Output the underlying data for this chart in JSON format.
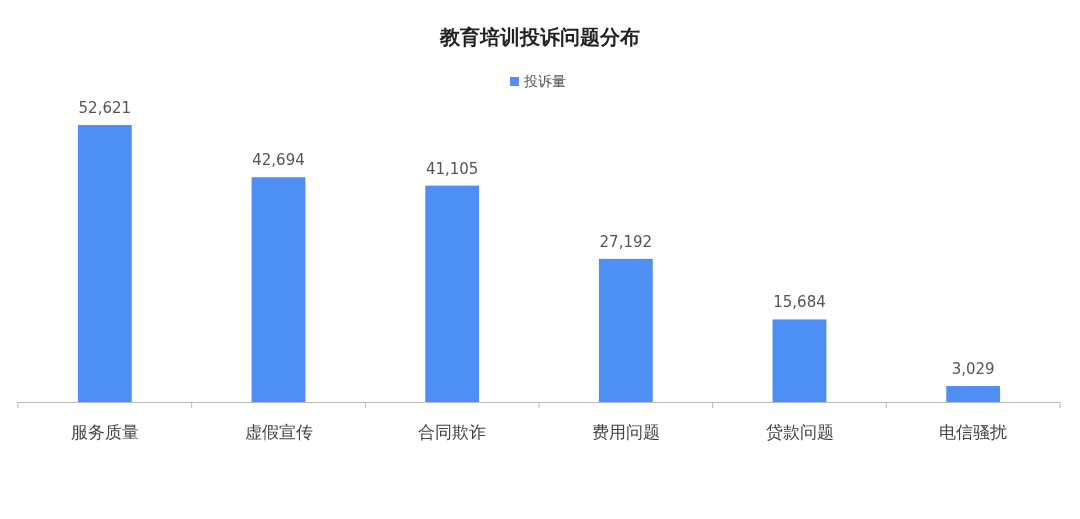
{
  "chart_data": {
    "type": "bar",
    "title": "教育培训投诉问题分布",
    "categories": [
      "服务质量",
      "虚假宣传",
      "合同欺诈",
      "费用问题",
      "贷款问题",
      "电信骚扰"
    ],
    "series": [
      {
        "name": "投诉量",
        "color": "#4d8ff5",
        "values": [
          52621,
          42694,
          41105,
          27192,
          15684,
          3029
        ],
        "value_labels": [
          "52,621",
          "42,694",
          "41,105",
          "27,192",
          "15,684",
          "3,029"
        ]
      }
    ],
    "legend": "top",
    "grid": false
  }
}
